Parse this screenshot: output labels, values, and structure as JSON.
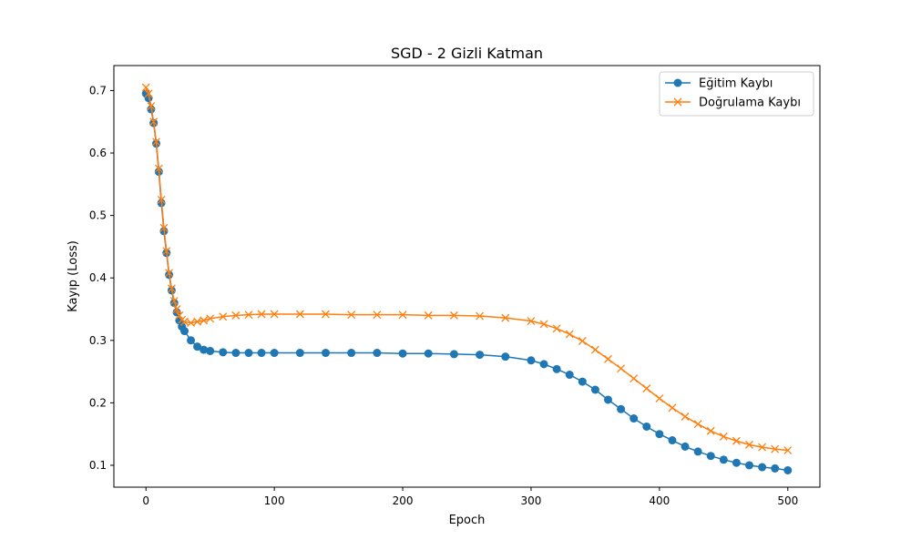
{
  "chart_data": {
    "type": "line",
    "title": "SGD - 2 Gizli Katman",
    "xlabel": "Epoch",
    "ylabel": "Kayıp (Loss)",
    "xlim": [
      -25,
      525
    ],
    "ylim": [
      0.065,
      0.74
    ],
    "xticks": [
      0,
      100,
      200,
      300,
      400,
      500
    ],
    "yticks": [
      0.1,
      0.2,
      0.3,
      0.4,
      0.5,
      0.6,
      0.7
    ],
    "legend_position": "top-right",
    "series": [
      {
        "name": "Eğitim Kaybı",
        "color": "#1f77b4",
        "marker": "circle",
        "x": [
          0,
          2,
          4,
          6,
          8,
          10,
          12,
          14,
          16,
          18,
          20,
          22,
          24,
          26,
          28,
          30,
          35,
          40,
          45,
          50,
          60,
          70,
          80,
          90,
          100,
          120,
          140,
          160,
          180,
          200,
          220,
          240,
          260,
          280,
          300,
          310,
          320,
          330,
          340,
          350,
          360,
          370,
          380,
          390,
          400,
          410,
          420,
          430,
          440,
          450,
          460,
          470,
          480,
          490,
          500
        ],
        "values": [
          0.695,
          0.688,
          0.67,
          0.648,
          0.615,
          0.57,
          0.52,
          0.475,
          0.44,
          0.405,
          0.38,
          0.36,
          0.345,
          0.332,
          0.322,
          0.315,
          0.3,
          0.29,
          0.285,
          0.283,
          0.281,
          0.28,
          0.28,
          0.28,
          0.28,
          0.28,
          0.28,
          0.28,
          0.28,
          0.279,
          0.279,
          0.278,
          0.277,
          0.274,
          0.268,
          0.262,
          0.254,
          0.245,
          0.234,
          0.221,
          0.205,
          0.19,
          0.175,
          0.162,
          0.15,
          0.14,
          0.13,
          0.122,
          0.115,
          0.109,
          0.104,
          0.1,
          0.097,
          0.095,
          0.092
        ]
      },
      {
        "name": "Doğrulama Kaybı",
        "color": "#ff7f0e",
        "marker": "x",
        "x": [
          0,
          2,
          4,
          6,
          8,
          10,
          12,
          14,
          16,
          18,
          20,
          22,
          24,
          26,
          28,
          30,
          35,
          40,
          45,
          50,
          60,
          70,
          80,
          90,
          100,
          120,
          140,
          160,
          180,
          200,
          220,
          240,
          260,
          280,
          300,
          310,
          320,
          330,
          340,
          350,
          360,
          370,
          380,
          390,
          400,
          410,
          420,
          430,
          440,
          450,
          460,
          470,
          480,
          490,
          500
        ],
        "values": [
          0.705,
          0.695,
          0.675,
          0.65,
          0.618,
          0.575,
          0.525,
          0.48,
          0.443,
          0.408,
          0.383,
          0.363,
          0.35,
          0.34,
          0.333,
          0.33,
          0.328,
          0.33,
          0.332,
          0.335,
          0.338,
          0.34,
          0.341,
          0.342,
          0.342,
          0.342,
          0.342,
          0.341,
          0.341,
          0.341,
          0.34,
          0.34,
          0.339,
          0.336,
          0.331,
          0.326,
          0.319,
          0.31,
          0.299,
          0.285,
          0.27,
          0.255,
          0.239,
          0.223,
          0.207,
          0.192,
          0.178,
          0.166,
          0.155,
          0.146,
          0.139,
          0.133,
          0.129,
          0.126,
          0.124
        ]
      }
    ]
  }
}
